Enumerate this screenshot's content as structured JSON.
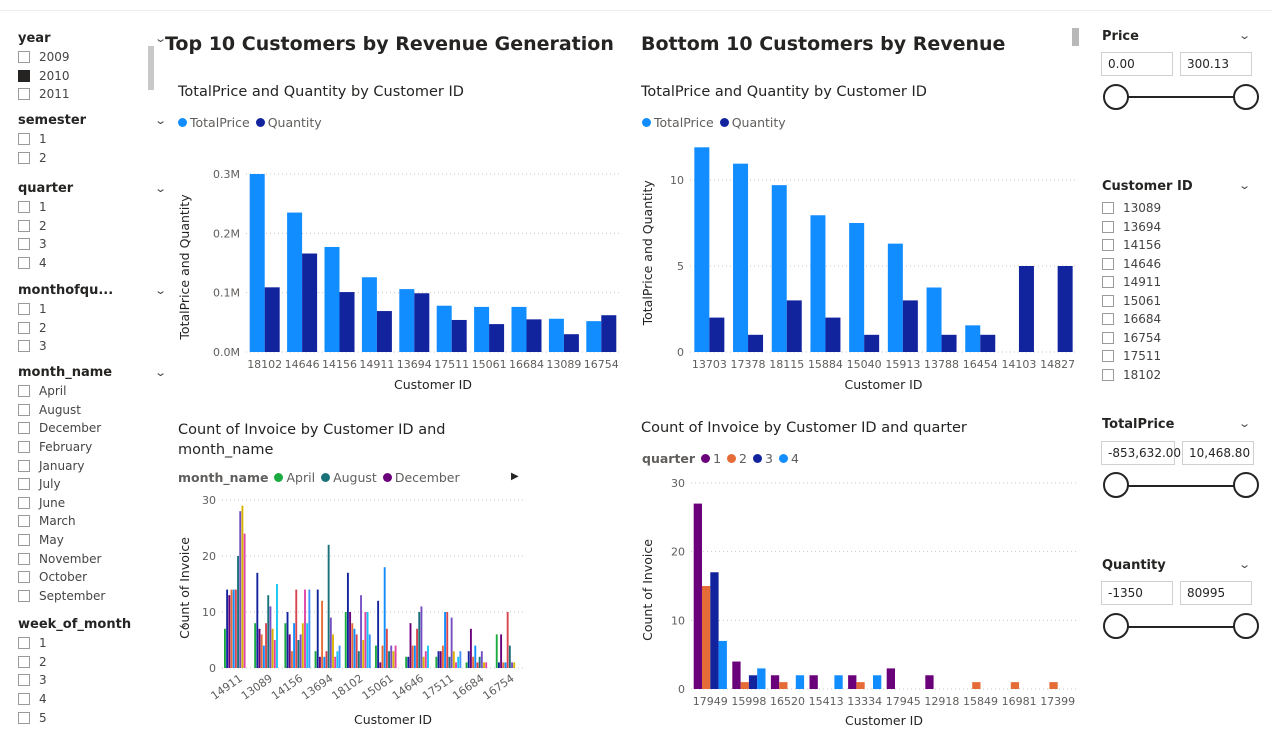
{
  "slicers": [
    {
      "title": "year",
      "items": [
        {
          "label": "2009",
          "checked": false
        },
        {
          "label": "2010",
          "checked": true
        },
        {
          "label": "2011",
          "checked": false
        }
      ]
    },
    {
      "title": "semester",
      "items": [
        {
          "label": "1"
        },
        {
          "label": "2"
        }
      ]
    },
    {
      "title": "quarter",
      "items": [
        {
          "label": "1"
        },
        {
          "label": "2"
        },
        {
          "label": "3"
        },
        {
          "label": "4"
        }
      ]
    },
    {
      "title": "monthofqu...",
      "items": [
        {
          "label": "1"
        },
        {
          "label": "2"
        },
        {
          "label": "3"
        }
      ]
    },
    {
      "title": "month_name",
      "items": [
        {
          "label": "April"
        },
        {
          "label": "August"
        },
        {
          "label": "December"
        },
        {
          "label": "February"
        },
        {
          "label": "January"
        },
        {
          "label": "July"
        },
        {
          "label": "June"
        },
        {
          "label": "March"
        },
        {
          "label": "May"
        },
        {
          "label": "November"
        },
        {
          "label": "October"
        },
        {
          "label": "September"
        }
      ]
    },
    {
      "title": "week_of_month",
      "items": [
        {
          "label": "1"
        },
        {
          "label": "2"
        },
        {
          "label": "3"
        },
        {
          "label": "4"
        },
        {
          "label": "5"
        }
      ]
    }
  ],
  "headings": {
    "top": "Top 10 Customers by Revenue Generation",
    "bottom": "Bottom 10 Customers by Revenue"
  },
  "colors": {
    "totalprice": "#118DFF",
    "quantity": "#12239E",
    "q1": "#6B007B",
    "q2": "#E66C37",
    "q3": "#12239E",
    "q4": "#118DFF"
  },
  "charts": {
    "top_bar": {
      "title": "TotalPrice and Quantity by Customer ID",
      "legend": [
        "TotalPrice",
        "Quantity"
      ],
      "xlabel": "Customer ID",
      "ylabel": "TotalPrice and Quantity",
      "yticks": [
        "0.0M",
        "0.1M",
        "0.2M",
        "0.3M"
      ]
    },
    "bottom_bar": {
      "title": "TotalPrice and Quantity by Customer ID",
      "legend": [
        "TotalPrice",
        "Quantity"
      ],
      "xlabel": "Customer ID",
      "ylabel": "TotalPrice and Quantity",
      "yticks": [
        "0",
        "5",
        "10"
      ]
    },
    "month_cols": {
      "title_line1": "Count of Invoice by Customer ID and",
      "title_line2": "month_name",
      "legend_title": "month_name",
      "legend": [
        "April",
        "August",
        "December"
      ],
      "xlabel": "Customer ID",
      "ylabel": "Count of Invoice",
      "yticks": [
        "0",
        "10",
        "20",
        "30"
      ]
    },
    "quarter_cols": {
      "title": "Count of Invoice by Customer ID and quarter",
      "legend_title": "quarter",
      "legend": [
        "1",
        "2",
        "3",
        "4"
      ],
      "xlabel": "Customer ID",
      "ylabel": "Count of Invoice",
      "yticks": [
        "0",
        "10",
        "20",
        "30"
      ]
    }
  },
  "chart_data": [
    {
      "type": "bar",
      "title": "TotalPrice and Quantity by Customer ID",
      "categories": [
        "18102",
        "14646",
        "14156",
        "14911",
        "13694",
        "17511",
        "15061",
        "16684",
        "13089",
        "16754"
      ],
      "series": [
        {
          "name": "TotalPrice",
          "values": [
            0.3,
            0.235,
            0.177,
            0.126,
            0.106,
            0.078,
            0.076,
            0.076,
            0.056,
            0.052
          ]
        },
        {
          "name": "Quantity",
          "values": [
            0.109,
            0.166,
            0.101,
            0.069,
            0.099,
            0.054,
            0.047,
            0.055,
            0.03,
            0.062
          ]
        }
      ],
      "ylim": [
        0,
        0.3
      ],
      "yunit": "M"
    },
    {
      "type": "bar",
      "title": "TotalPrice and Quantity by Customer ID",
      "categories": [
        "13703",
        "17378",
        "18115",
        "15884",
        "15040",
        "15913",
        "13788",
        "16454",
        "14103",
        "14827"
      ],
      "series": [
        {
          "name": "TotalPrice",
          "values": [
            11.9,
            10.95,
            9.7,
            7.95,
            7.5,
            6.3,
            3.75,
            1.55,
            0,
            0
          ]
        },
        {
          "name": "Quantity",
          "values": [
            2,
            1,
            3,
            2,
            1,
            3,
            1,
            1,
            5,
            5
          ]
        }
      ],
      "ylim": [
        0,
        12
      ]
    },
    {
      "type": "bar",
      "title": "Count of Invoice by Customer ID and month_name",
      "categories": [
        "14911",
        "13089",
        "14156",
        "13694",
        "18102",
        "15061",
        "14646",
        "17511",
        "16684",
        "16754"
      ],
      "series_colors": [
        "#1AAB40",
        "#12239E",
        "#6B007B",
        "#E66C37",
        "#118DFF",
        "#D64550",
        "#197278",
        "#744EC2",
        "#D9B300",
        "#E044A7",
        "#15C6F4",
        "#4092FF"
      ],
      "series_names": [
        "April",
        "August",
        "December"
      ],
      "groups": [
        [
          7,
          14,
          13,
          14,
          14,
          14,
          20,
          28,
          29,
          24,
          0,
          0
        ],
        [
          8,
          17,
          7,
          6,
          4,
          8,
          13,
          11,
          7,
          5,
          15,
          0
        ],
        [
          8,
          10,
          6,
          3,
          8,
          14,
          5,
          6,
          8,
          14,
          8,
          14
        ],
        [
          3,
          14,
          2,
          12,
          2,
          3,
          22,
          9,
          6,
          2,
          3,
          4
        ],
        [
          10,
          17,
          10,
          8,
          7,
          6,
          3,
          13,
          5,
          10,
          10,
          6
        ],
        [
          4,
          12,
          1,
          4,
          18,
          7,
          3,
          4,
          3,
          4,
          0,
          0
        ],
        [
          2,
          2,
          8,
          4,
          4,
          7,
          10,
          11,
          2,
          3,
          4,
          0
        ],
        [
          2,
          3,
          3,
          4,
          10,
          10,
          2,
          9,
          3,
          1,
          2,
          3
        ],
        [
          1,
          3,
          7,
          2,
          4,
          1,
          2,
          3,
          1,
          1,
          0,
          0
        ],
        [
          6,
          1,
          6,
          1,
          1,
          10,
          4,
          1,
          1,
          0,
          0,
          0
        ]
      ],
      "ylim": [
        0,
        30
      ]
    },
    {
      "type": "bar",
      "title": "Count of Invoice by Customer ID and quarter",
      "categories": [
        "17949",
        "15998",
        "16520",
        "15413",
        "13334",
        "17945",
        "12918",
        "15849",
        "16981",
        "17399"
      ],
      "series": [
        {
          "name": "1",
          "values": [
            27,
            4,
            2,
            2,
            2,
            3,
            2,
            0,
            0,
            0
          ]
        },
        {
          "name": "2",
          "values": [
            15,
            1,
            1,
            0,
            1,
            0,
            0,
            1,
            1,
            1
          ]
        },
        {
          "name": "3",
          "values": [
            17,
            2,
            0,
            0,
            0,
            0,
            0,
            0,
            0,
            0
          ]
        },
        {
          "name": "4",
          "values": [
            7,
            3,
            2,
            2,
            2,
            0,
            0,
            0,
            0,
            0
          ]
        }
      ],
      "ylim": [
        0,
        30
      ]
    }
  ],
  "filters": {
    "price": {
      "title": "Price",
      "min": "0.00",
      "max": "300.13"
    },
    "customer": {
      "title": "Customer ID",
      "items": [
        "13089",
        "13694",
        "14156",
        "14646",
        "14911",
        "15061",
        "16684",
        "16754",
        "17511",
        "18102"
      ]
    },
    "totalprice": {
      "title": "TotalPrice",
      "min": "-853,632.00",
      "max": "10,468.80"
    },
    "quantity": {
      "title": "Quantity",
      "min": "-1350",
      "max": "80995"
    }
  }
}
